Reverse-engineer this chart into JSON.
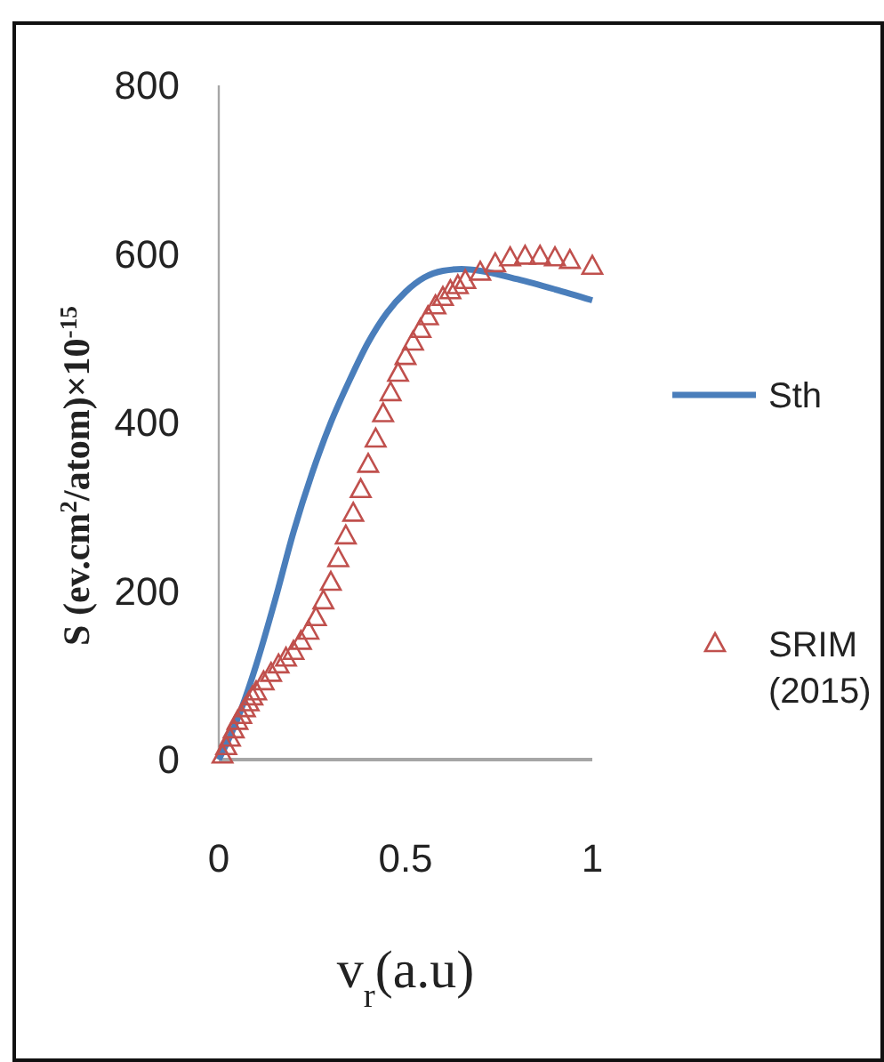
{
  "chart_data": {
    "type": "line",
    "xlabel": "v$_{r}$(a.u)",
    "ylabel": "S (ev.cm$^{2}$/atom)×10$^{-15}$",
    "xlim": [
      0,
      1
    ],
    "ylim": [
      0,
      800
    ],
    "xticks": [
      0,
      0.5,
      1
    ],
    "yticks": [
      0,
      200,
      400,
      600,
      800
    ],
    "legend": "right",
    "series": [
      {
        "name": "Sth",
        "color": "#4a7ebb",
        "marker": "none",
        "x": [
          0,
          0.05,
          0.1,
          0.15,
          0.2,
          0.25,
          0.3,
          0.35,
          0.4,
          0.45,
          0.5,
          0.55,
          0.6,
          0.65,
          0.7,
          0.8,
          0.9,
          1.0
        ],
        "values": [
          0,
          48,
          112,
          188,
          270,
          340,
          400,
          450,
          495,
          530,
          555,
          572,
          580,
          582,
          580,
          570,
          558,
          545
        ]
      },
      {
        "name": "SRIM (2015)",
        "type": "scatter",
        "color": "#c0504d",
        "marker": "triangle",
        "x": [
          0.01,
          0.02,
          0.03,
          0.04,
          0.05,
          0.06,
          0.07,
          0.08,
          0.09,
          0.1,
          0.12,
          0.14,
          0.16,
          0.18,
          0.2,
          0.22,
          0.24,
          0.26,
          0.28,
          0.3,
          0.32,
          0.34,
          0.36,
          0.38,
          0.4,
          0.42,
          0.44,
          0.46,
          0.48,
          0.5,
          0.52,
          0.54,
          0.56,
          0.58,
          0.6,
          0.62,
          0.64,
          0.66,
          0.7,
          0.74,
          0.78,
          0.82,
          0.86,
          0.9,
          0.94,
          1.0
        ],
        "values": [
          5,
          15,
          25,
          35,
          45,
          52,
          60,
          67,
          74,
          80,
          92,
          102,
          112,
          120,
          128,
          140,
          152,
          168,
          188,
          210,
          238,
          265,
          292,
          320,
          350,
          380,
          410,
          435,
          458,
          478,
          495,
          510,
          525,
          538,
          548,
          556,
          562,
          568,
          578,
          588,
          595,
          597,
          597,
          595,
          592,
          585
        ]
      }
    ]
  }
}
